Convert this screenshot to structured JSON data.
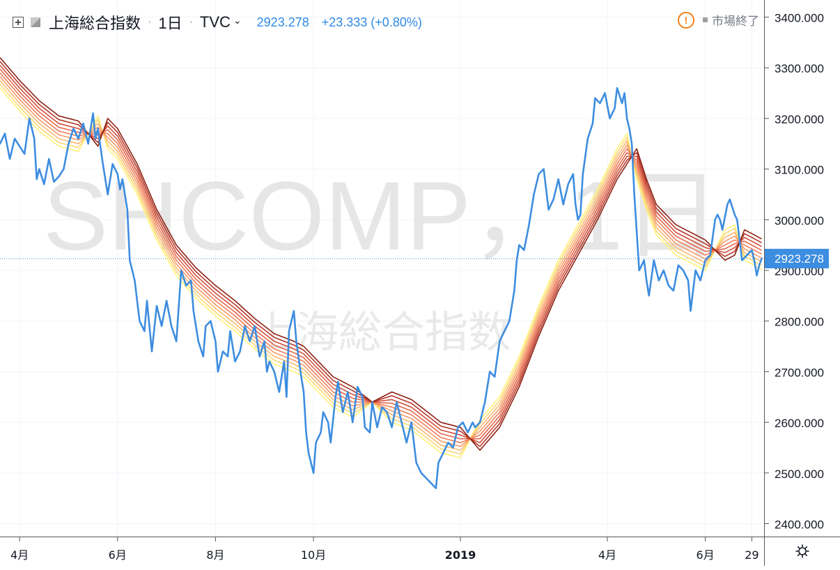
{
  "legend": {
    "name": "上海総合指数",
    "interval": "1日",
    "source": "TVC",
    "separator": "·",
    "value": "2923.278",
    "change": "+23.333 (+0.80%)"
  },
  "status": {
    "warn_glyph": "!",
    "text": "市場終了"
  },
  "watermark": {
    "line1": "SHCOMP，1日",
    "line2": "上海総合指数"
  },
  "last_price_label": "2923.278",
  "colors": {
    "price": "#3d8de0",
    "last_price_badge": "#3d8de0",
    "ribbon": [
      "#fff176",
      "#fbd774",
      "#f9b872",
      "#f59a66",
      "#ee7d58",
      "#e36649",
      "#cf4e39",
      "#b43628",
      "#8d2112"
    ]
  },
  "chart_data": {
    "type": "line",
    "title": "上海総合指数",
    "ylim": [
      2380,
      3420
    ],
    "yticks": [
      2400,
      2500,
      2600,
      2700,
      2800,
      2900,
      3000,
      3100,
      3200,
      3300,
      3400
    ],
    "ytick_labels": [
      "2400.000",
      "2500.000",
      "2600.000",
      "2700.000",
      "2800.000",
      "2900.000",
      "3000.000",
      "3100.000",
      "3200.000",
      "3300.000",
      "3400.000"
    ],
    "xticks": [
      {
        "label": "4月",
        "x": 0.8
      },
      {
        "label": "6月",
        "x": 2.8
      },
      {
        "label": "8月",
        "x": 4.8
      },
      {
        "label": "10月",
        "x": 6.8
      },
      {
        "label": "2019",
        "x": 9.8
      },
      {
        "label": "4月",
        "x": 12.8
      },
      {
        "label": "6月",
        "x": 14.8
      },
      {
        "label": "29",
        "x": 15.75
      }
    ],
    "xlim": [
      0.4,
      16.0
    ],
    "grid": true,
    "last_value": 2923.278,
    "series": [
      {
        "role": "price",
        "points": [
          [
            0.4,
            3150
          ],
          [
            0.5,
            3170
          ],
          [
            0.6,
            3120
          ],
          [
            0.7,
            3160
          ],
          [
            0.8,
            3145
          ],
          [
            0.9,
            3130
          ],
          [
            1.0,
            3200
          ],
          [
            1.1,
            3160
          ],
          [
            1.15,
            3080
          ],
          [
            1.2,
            3100
          ],
          [
            1.3,
            3070
          ],
          [
            1.4,
            3120
          ],
          [
            1.5,
            3075
          ],
          [
            1.6,
            3085
          ],
          [
            1.7,
            3100
          ],
          [
            1.8,
            3150
          ],
          [
            1.9,
            3180
          ],
          [
            2.0,
            3160
          ],
          [
            2.1,
            3190
          ],
          [
            2.2,
            3150
          ],
          [
            2.3,
            3210
          ],
          [
            2.35,
            3160
          ],
          [
            2.4,
            3180
          ],
          [
            2.5,
            3110
          ],
          [
            2.6,
            3050
          ],
          [
            2.7,
            3110
          ],
          [
            2.8,
            3090
          ],
          [
            2.85,
            3060
          ],
          [
            2.9,
            3080
          ],
          [
            3.0,
            3020
          ],
          [
            3.05,
            2920
          ],
          [
            3.15,
            2880
          ],
          [
            3.25,
            2800
          ],
          [
            3.35,
            2780
          ],
          [
            3.4,
            2840
          ],
          [
            3.5,
            2740
          ],
          [
            3.6,
            2830
          ],
          [
            3.7,
            2790
          ],
          [
            3.8,
            2840
          ],
          [
            3.9,
            2790
          ],
          [
            4.0,
            2760
          ],
          [
            4.1,
            2900
          ],
          [
            4.2,
            2870
          ],
          [
            4.3,
            2880
          ],
          [
            4.35,
            2820
          ],
          [
            4.45,
            2760
          ],
          [
            4.55,
            2730
          ],
          [
            4.6,
            2790
          ],
          [
            4.7,
            2800
          ],
          [
            4.8,
            2760
          ],
          [
            4.85,
            2700
          ],
          [
            4.95,
            2740
          ],
          [
            5.05,
            2730
          ],
          [
            5.1,
            2780
          ],
          [
            5.2,
            2720
          ],
          [
            5.3,
            2740
          ],
          [
            5.4,
            2790
          ],
          [
            5.5,
            2760
          ],
          [
            5.6,
            2790
          ],
          [
            5.7,
            2730
          ],
          [
            5.8,
            2760
          ],
          [
            5.85,
            2700
          ],
          [
            5.9,
            2720
          ],
          [
            6.0,
            2700
          ],
          [
            6.1,
            2660
          ],
          [
            6.2,
            2720
          ],
          [
            6.25,
            2650
          ],
          [
            6.3,
            2780
          ],
          [
            6.4,
            2820
          ],
          [
            6.45,
            2760
          ],
          [
            6.55,
            2690
          ],
          [
            6.6,
            2660
          ],
          [
            6.65,
            2580
          ],
          [
            6.7,
            2540
          ],
          [
            6.8,
            2500
          ],
          [
            6.85,
            2560
          ],
          [
            6.95,
            2580
          ],
          [
            7.0,
            2620
          ],
          [
            7.1,
            2600
          ],
          [
            7.15,
            2560
          ],
          [
            7.25,
            2650
          ],
          [
            7.3,
            2680
          ],
          [
            7.4,
            2620
          ],
          [
            7.5,
            2660
          ],
          [
            7.6,
            2600
          ],
          [
            7.7,
            2670
          ],
          [
            7.8,
            2650
          ],
          [
            7.85,
            2590
          ],
          [
            7.95,
            2580
          ],
          [
            8.0,
            2640
          ],
          [
            8.1,
            2590
          ],
          [
            8.2,
            2630
          ],
          [
            8.3,
            2620
          ],
          [
            8.4,
            2590
          ],
          [
            8.5,
            2640
          ],
          [
            8.6,
            2600
          ],
          [
            8.7,
            2560
          ],
          [
            8.8,
            2600
          ],
          [
            8.9,
            2520
          ],
          [
            9.0,
            2500
          ],
          [
            9.1,
            2490
          ],
          [
            9.2,
            2480
          ],
          [
            9.3,
            2470
          ],
          [
            9.35,
            2520
          ],
          [
            9.45,
            2540
          ],
          [
            9.55,
            2560
          ],
          [
            9.65,
            2550
          ],
          [
            9.75,
            2590
          ],
          [
            9.85,
            2600
          ],
          [
            9.95,
            2580
          ],
          [
            10.05,
            2600
          ],
          [
            10.1,
            2590
          ],
          [
            10.2,
            2600
          ],
          [
            10.3,
            2640
          ],
          [
            10.4,
            2700
          ],
          [
            10.5,
            2690
          ],
          [
            10.6,
            2760
          ],
          [
            10.7,
            2780
          ],
          [
            10.8,
            2800
          ],
          [
            10.9,
            2860
          ],
          [
            10.95,
            2920
          ],
          [
            11.0,
            2950
          ],
          [
            11.1,
            2940
          ],
          [
            11.2,
            2990
          ],
          [
            11.3,
            3050
          ],
          [
            11.4,
            3090
          ],
          [
            11.5,
            3100
          ],
          [
            11.6,
            3020
          ],
          [
            11.7,
            3040
          ],
          [
            11.8,
            3080
          ],
          [
            11.9,
            3030
          ],
          [
            12.0,
            3070
          ],
          [
            12.1,
            3090
          ],
          [
            12.15,
            3030
          ],
          [
            12.2,
            3000
          ],
          [
            12.25,
            3010
          ],
          [
            12.3,
            3090
          ],
          [
            12.4,
            3160
          ],
          [
            12.5,
            3190
          ],
          [
            12.55,
            3240
          ],
          [
            12.65,
            3230
          ],
          [
            12.75,
            3250
          ],
          [
            12.85,
            3200
          ],
          [
            12.95,
            3220
          ],
          [
            13.0,
            3260
          ],
          [
            13.1,
            3230
          ],
          [
            13.15,
            3250
          ],
          [
            13.2,
            3200
          ],
          [
            13.25,
            3180
          ],
          [
            13.3,
            3150
          ],
          [
            13.35,
            3050
          ],
          [
            13.45,
            2900
          ],
          [
            13.55,
            2920
          ],
          [
            13.6,
            2880
          ],
          [
            13.65,
            2850
          ],
          [
            13.75,
            2920
          ],
          [
            13.85,
            2880
          ],
          [
            13.95,
            2900
          ],
          [
            14.05,
            2870
          ],
          [
            14.15,
            2860
          ],
          [
            14.25,
            2910
          ],
          [
            14.35,
            2900
          ],
          [
            14.45,
            2880
          ],
          [
            14.5,
            2820
          ],
          [
            14.6,
            2900
          ],
          [
            14.7,
            2880
          ],
          [
            14.8,
            2920
          ],
          [
            14.9,
            2930
          ],
          [
            15.0,
            3000
          ],
          [
            15.05,
            3010
          ],
          [
            15.1,
            3000
          ],
          [
            15.15,
            2980
          ],
          [
            15.25,
            3030
          ],
          [
            15.3,
            3040
          ],
          [
            15.4,
            3010
          ],
          [
            15.45,
            3000
          ],
          [
            15.55,
            2920
          ],
          [
            15.65,
            2930
          ],
          [
            15.75,
            2940
          ],
          [
            15.8,
            2920
          ],
          [
            15.85,
            2890
          ],
          [
            15.9,
            2910
          ],
          [
            15.95,
            2923.278
          ]
        ]
      },
      {
        "role": "ribbon-center",
        "points": [
          [
            0.4,
            3290
          ],
          [
            0.8,
            3245
          ],
          [
            1.2,
            3205
          ],
          [
            1.6,
            3175
          ],
          [
            2.0,
            3165
          ],
          [
            2.4,
            3175
          ],
          [
            2.6,
            3170
          ],
          [
            2.8,
            3150
          ],
          [
            3.2,
            3080
          ],
          [
            3.6,
            2990
          ],
          [
            4.0,
            2920
          ],
          [
            4.4,
            2875
          ],
          [
            4.8,
            2840
          ],
          [
            5.2,
            2810
          ],
          [
            5.6,
            2775
          ],
          [
            6.0,
            2745
          ],
          [
            6.4,
            2730
          ],
          [
            6.6,
            2720
          ],
          [
            6.8,
            2700
          ],
          [
            7.2,
            2660
          ],
          [
            7.6,
            2640
          ],
          [
            8.0,
            2640
          ],
          [
            8.4,
            2630
          ],
          [
            8.8,
            2615
          ],
          [
            9.0,
            2600
          ],
          [
            9.4,
            2570
          ],
          [
            9.8,
            2560
          ],
          [
            10.2,
            2575
          ],
          [
            10.6,
            2620
          ],
          [
            11.0,
            2700
          ],
          [
            11.4,
            2800
          ],
          [
            11.8,
            2890
          ],
          [
            12.2,
            2960
          ],
          [
            12.6,
            3030
          ],
          [
            13.0,
            3110
          ],
          [
            13.2,
            3140
          ],
          [
            13.4,
            3110
          ],
          [
            13.6,
            3050
          ],
          [
            13.8,
            3000
          ],
          [
            14.2,
            2960
          ],
          [
            14.6,
            2940
          ],
          [
            14.8,
            2930
          ],
          [
            15.2,
            2950
          ],
          [
            15.4,
            2960
          ],
          [
            15.6,
            2950
          ],
          [
            15.8,
            2940
          ],
          [
            15.95,
            2932
          ]
        ]
      }
    ]
  }
}
